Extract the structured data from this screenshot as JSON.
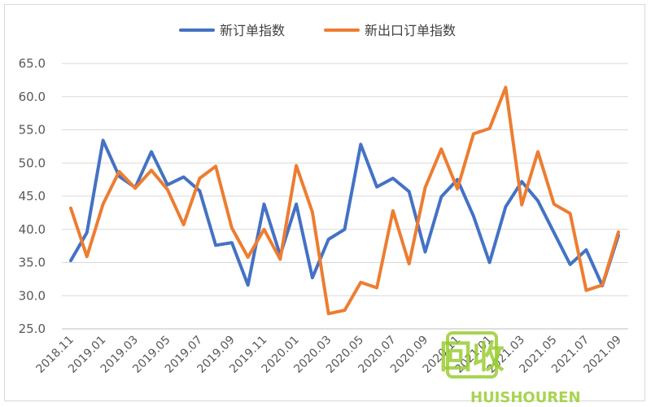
{
  "chart_data": {
    "type": "line",
    "title": "",
    "xlabel": "",
    "ylabel": "",
    "ylim": [
      25,
      65
    ],
    "yticks": [
      "25.0",
      "30.0",
      "35.0",
      "40.0",
      "45.0",
      "50.0",
      "55.0",
      "60.0",
      "65.0"
    ],
    "grid": true,
    "legend_position": "top",
    "x": [
      "2018.11",
      "2018.12",
      "2019.01",
      "2019.02",
      "2019.03",
      "2019.04",
      "2019.05",
      "2019.06",
      "2019.07",
      "2019.08",
      "2019.09",
      "2019.10",
      "2019.11",
      "2019.12",
      "2020.01",
      "2020.02",
      "2020.03",
      "2020.04",
      "2020.05",
      "2020.06",
      "2020.07",
      "2020.08",
      "2020.09",
      "2020.10",
      "2020.11",
      "2020.12",
      "2021.01",
      "2021.02",
      "2021.03",
      "2021.04",
      "2021.05",
      "2021.06",
      "2021.07",
      "2021.08",
      "2021.09"
    ],
    "x_tick_labels": [
      "2018.11",
      "2019.01",
      "2019.03",
      "2019.05",
      "2019.07",
      "2019.09",
      "2019.11",
      "2020.01",
      "2020.03",
      "2020.05",
      "2020.07",
      "2020.09",
      "2020.11",
      "2021.01",
      "2021.03",
      "2021.05",
      "2021.07",
      "2021.09"
    ],
    "series": [
      {
        "name": "新订单指数",
        "color": "#4472c4",
        "values": [
          35.3,
          39.5,
          53.4,
          48.0,
          46.3,
          51.7,
          46.7,
          47.9,
          45.8,
          37.6,
          38.0,
          31.6,
          43.8,
          36.1,
          43.8,
          32.7,
          38.5,
          40.0,
          52.8,
          46.4,
          47.7,
          45.7,
          36.6,
          44.9,
          47.5,
          42.0,
          35.0,
          43.4,
          47.2,
          44.3,
          39.5,
          34.7,
          36.9,
          31.5,
          39.1
        ]
      },
      {
        "name": "新出口订单指数",
        "color": "#ed7d31",
        "values": [
          43.2,
          35.9,
          43.8,
          48.7,
          46.2,
          48.9,
          46.0,
          40.7,
          47.7,
          49.5,
          40.2,
          35.8,
          40.0,
          35.5,
          49.6,
          42.6,
          27.3,
          27.8,
          32.0,
          31.2,
          42.8,
          34.8,
          46.3,
          52.1,
          46.1,
          54.4,
          55.2,
          61.4,
          43.7,
          51.7,
          43.8,
          42.4,
          30.8,
          31.6,
          39.6
        ]
      }
    ]
  },
  "watermark": {
    "logo_text": "回收",
    "brand_text": "HUISHOUREN",
    "color": "#9acd32"
  }
}
